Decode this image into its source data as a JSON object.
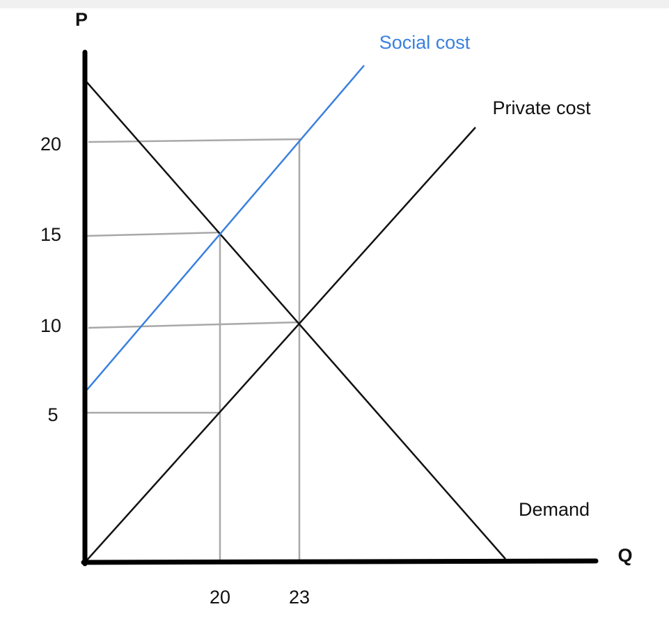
{
  "axes": {
    "y_label": "P",
    "x_label": "Q"
  },
  "y_ticks": [
    "20",
    "15",
    "10",
    "5"
  ],
  "x_ticks": [
    "20",
    "23"
  ],
  "curves": {
    "social": "Social cost",
    "private": "Private cost",
    "demand": "Demand"
  }
}
